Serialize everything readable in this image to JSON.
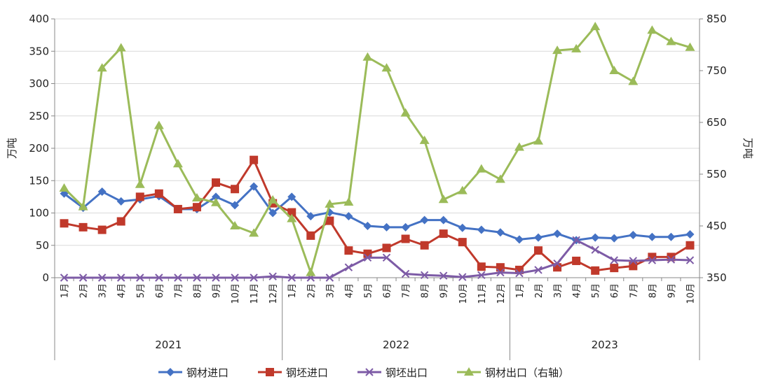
{
  "chart_data": {
    "type": "line",
    "categories": [
      "1月",
      "2月",
      "3月",
      "4月",
      "5月",
      "6月",
      "7月",
      "8月",
      "9月",
      "10月",
      "11月",
      "12月",
      "1月",
      "2月",
      "3月",
      "4月",
      "5月",
      "6月",
      "7月",
      "8月",
      "9月",
      "10月",
      "11月",
      "12月",
      "1月",
      "2月",
      "3月",
      "4月",
      "5月",
      "6月",
      "7月",
      "8月",
      "9月",
      "10月"
    ],
    "years": [
      {
        "label": "2021",
        "start": 0,
        "end": 11
      },
      {
        "label": "2022",
        "start": 12,
        "end": 23
      },
      {
        "label": "2023",
        "start": 24,
        "end": 33
      }
    ],
    "ylabel_left": "万吨",
    "ylabel_right": "万吨",
    "ylim_left": [
      0,
      400
    ],
    "ylim_right": [
      350,
      850
    ],
    "yticks_left": [
      0,
      50,
      100,
      150,
      200,
      250,
      300,
      350,
      400
    ],
    "yticks_right": [
      350,
      450,
      550,
      650,
      750,
      850
    ],
    "legend_position": "bottom",
    "series": [
      {
        "name": "钢材进口",
        "axis": "left",
        "color": "#4472C4",
        "marker": "diamond",
        "values": [
          130,
          108,
          133,
          118,
          121,
          126,
          106,
          106,
          125,
          112,
          141,
          100,
          125,
          95,
          101,
          95,
          80,
          78,
          78,
          89,
          89,
          77,
          74,
          70,
          59,
          62,
          68,
          58,
          62,
          61,
          66,
          63,
          63,
          67
        ]
      },
      {
        "name": "钢坯进口",
        "axis": "left",
        "color": "#C0392B",
        "marker": "square",
        "values": [
          84,
          78,
          74,
          87,
          125,
          130,
          106,
          109,
          147,
          137,
          182,
          115,
          101,
          65,
          88,
          42,
          37,
          46,
          60,
          50,
          68,
          55,
          17,
          16,
          12,
          42,
          16,
          26,
          11,
          15,
          18,
          32,
          32,
          50
        ]
      },
      {
        "name": "钢坯出口",
        "axis": "left",
        "color": "#7D5BA6",
        "marker": "x",
        "values": [
          0,
          0,
          0,
          0,
          0,
          0,
          0,
          0,
          0,
          0,
          0,
          2,
          0,
          0,
          0,
          16,
          31,
          31,
          6,
          4,
          3,
          1,
          4,
          8,
          7,
          12,
          22,
          58,
          43,
          27,
          26,
          27,
          28,
          27
        ]
      },
      {
        "name": "钢材出口（右轴）",
        "axis": "right",
        "color": "#9BBB59",
        "marker": "triangle",
        "values": [
          523,
          487,
          755,
          794,
          530,
          644,
          570,
          504,
          495,
          450,
          436,
          500,
          464,
          360,
          492,
          496,
          776,
          755,
          668,
          615,
          501,
          518,
          560,
          540,
          602,
          614,
          789,
          792,
          835,
          750,
          729,
          828,
          806,
          795
        ]
      }
    ]
  }
}
